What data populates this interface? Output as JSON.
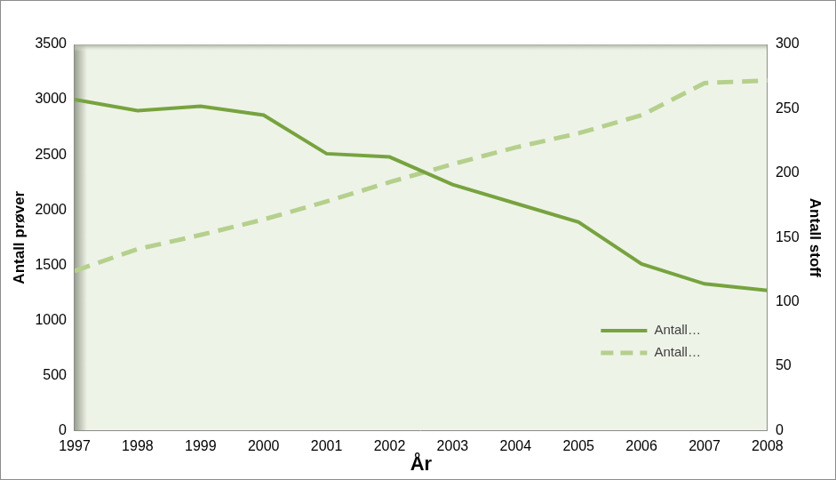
{
  "chart_data": {
    "type": "line",
    "categories": [
      "1997",
      "1998",
      "1999",
      "2000",
      "2001",
      "2002",
      "2003",
      "2004",
      "2005",
      "2006",
      "2007",
      "2008"
    ],
    "x_label": "År",
    "y_label": "Antall prøver",
    "y2_label": "Antall stoff",
    "ylim": [
      0,
      3500
    ],
    "yticks": [
      0,
      500,
      1000,
      1500,
      2000,
      2500,
      3000,
      3500
    ],
    "y2lim": [
      0,
      300
    ],
    "y2ticks": [
      0,
      50,
      100,
      150,
      200,
      250,
      300
    ],
    "grid": false,
    "legend": "lower right",
    "series": [
      {
        "name": "Antall…",
        "color": "#77a33f",
        "line_style": "solid",
        "marker": "none",
        "values": [
          3000,
          2900,
          2940,
          2860,
          2510,
          2480,
          2230,
          2060,
          1890,
          1510,
          1330,
          1270
        ]
      },
      {
        "name": "Antall…",
        "color": "#b5d08c",
        "line_style": "dashed",
        "marker": "none",
        "axis": "y2",
        "values": [
          124,
          141,
          152,
          164,
          178,
          193,
          207,
          220,
          231,
          245,
          270,
          272
        ]
      }
    ]
  }
}
